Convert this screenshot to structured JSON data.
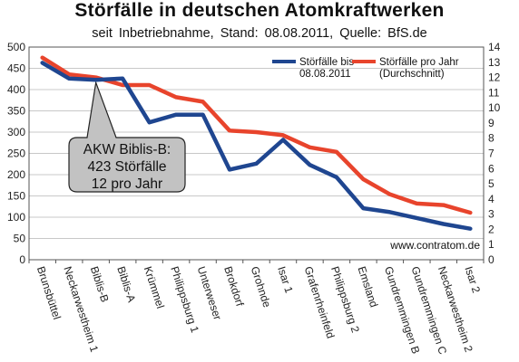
{
  "chart_data": {
    "type": "line",
    "title": "Störfälle in deutschen Atomkraftwerken",
    "subtitle": "seit  Inbetriebnahme,  Stand:  08.08.2011,  Quelle:  BfS.de",
    "categories": [
      "Brunsbüttel",
      "Neckarwestheim 1",
      "Biblis-B",
      "Biblis-A",
      "Krümmel",
      "Philippsburg 1",
      "Unterweser",
      "Brokdorf",
      "Grohnde",
      "Isar 1",
      "Grafenrheinfeld",
      "Philippsburg 2",
      "Emsland",
      "Gundremmingen B",
      "Gundremmingen C",
      "Neckarwestheim 2",
      "Isar 2"
    ],
    "series": [
      {
        "name": "Störfälle bis 08.08.2011",
        "legend_lines": [
          "Störfälle bis",
          "08.08.2011"
        ],
        "axis": "left",
        "color": "#1f4690",
        "values": [
          463,
          426,
          423,
          426,
          323,
          341,
          341,
          212,
          226,
          282,
          223,
          194,
          121,
          112,
          98,
          84,
          73
        ]
      },
      {
        "name": "Störfälle pro Jahr (Durchschnitt)",
        "legend_lines": [
          "Störfälle pro Jahr",
          "(Durchschnitt)"
        ],
        "axis": "right",
        "color": "#e8442c",
        "values": [
          13.3,
          12.2,
          12.0,
          11.5,
          11.5,
          10.7,
          10.4,
          8.5,
          8.4,
          8.2,
          7.4,
          7.1,
          5.3,
          4.3,
          3.7,
          3.6,
          3.1
        ]
      }
    ],
    "left_axis": {
      "ylim": [
        0,
        500
      ],
      "ticks": [
        "0",
        "50",
        "100",
        "150",
        "200",
        "250",
        "300",
        "350",
        "400",
        "450",
        "500"
      ]
    },
    "right_axis": {
      "ylim": [
        0,
        14
      ],
      "ticks": [
        "0",
        "1",
        "2",
        "3",
        "4",
        "5",
        "6",
        "7",
        "8",
        "9",
        "10",
        "11",
        "12",
        "13",
        "14"
      ]
    },
    "grid": true,
    "legend_position": "top-right",
    "annotation": {
      "lines": [
        "AKW Biblis-B:",
        "423 Störfälle",
        "12 pro Jahr"
      ],
      "target_category": "Biblis-B"
    },
    "watermark": "www.contratom.de"
  },
  "colors": {
    "blue_series": "#1f4690",
    "red_series": "#e8442c",
    "callout_fill": "#c2c2c2",
    "grid": "#c8c8c8"
  }
}
